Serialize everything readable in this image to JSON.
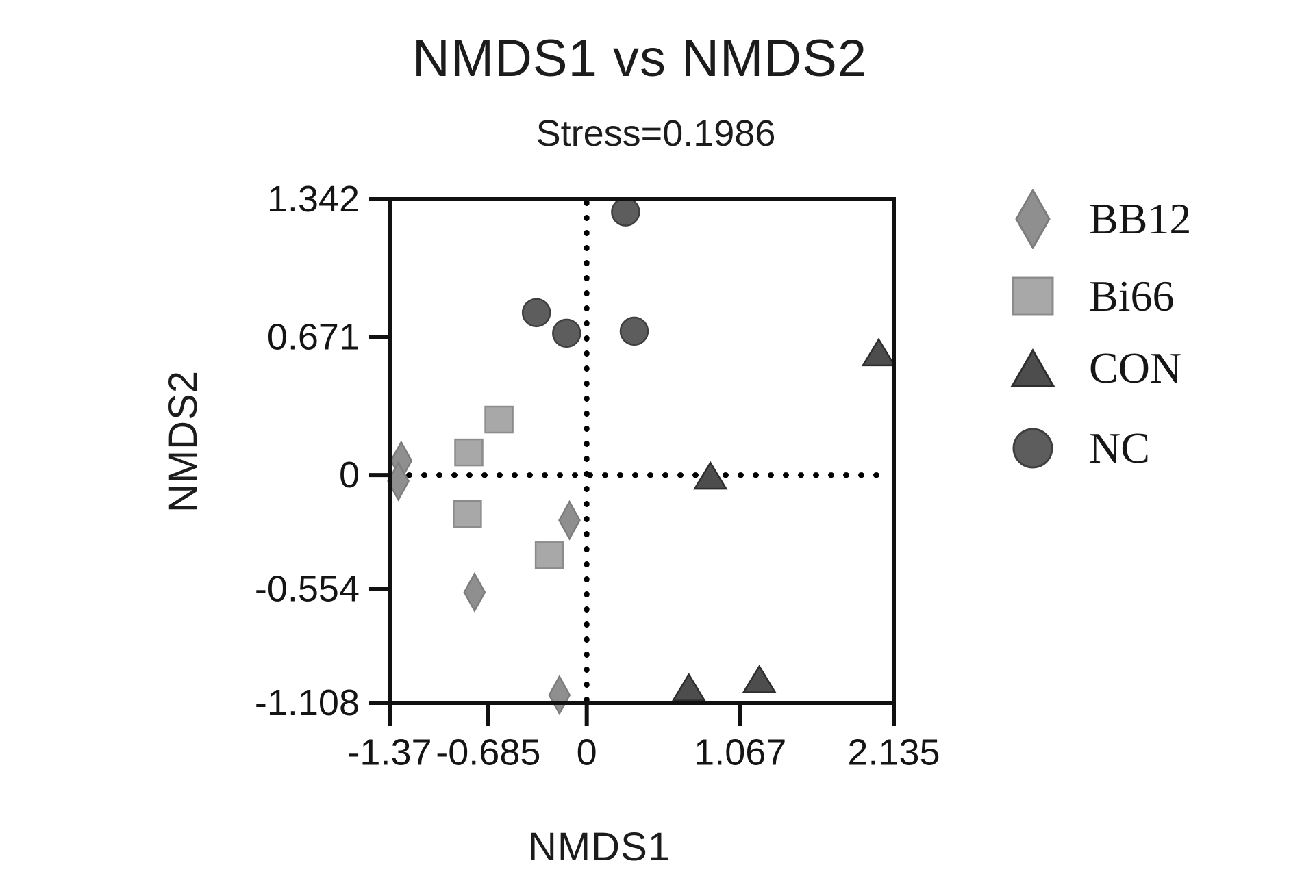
{
  "figure": {
    "background": "#ffffff",
    "axis_color": "#111111",
    "text_color": "#161616"
  },
  "chart_data": {
    "type": "scatter",
    "title": "NMDS1 vs NMDS2",
    "subtitle": "Stress=0.1986",
    "stress": "0.1986",
    "xlabel": "NMDS1",
    "ylabel": "NMDS2",
    "xlim": [
      -1.37,
      2.135
    ],
    "ylim": [
      -1.108,
      1.342
    ],
    "x_ticks": [
      -1.37,
      -0.685,
      0,
      1.067,
      2.135
    ],
    "x_tick_labels": [
      "-1.37",
      "-0.685",
      "0",
      "1.067",
      "2.135"
    ],
    "y_ticks": [
      1.342,
      0.671,
      0,
      -0.554,
      -1.108
    ],
    "y_tick_labels": [
      "1.342",
      "0.671",
      "0",
      "-0.554",
      "-1.108"
    ],
    "grid": false,
    "reference_lines": {
      "x": 0,
      "y": 0,
      "style": "dotted",
      "color": "#000000"
    },
    "legend_position": "right-outside",
    "series": [
      {
        "name": "BB12",
        "marker": "diamond",
        "color": "#8f8f8f",
        "stroke": "#7d7d7d",
        "points": [
          [
            -1.29,
            0.07
          ],
          [
            -1.31,
            -0.03
          ],
          [
            -0.12,
            -0.22
          ],
          [
            -0.78,
            -0.57
          ],
          [
            -0.19,
            -1.07
          ]
        ]
      },
      {
        "name": "Bi66",
        "marker": "square",
        "color": "#a8a8a8",
        "stroke": "#8c8c8c",
        "points": [
          [
            -0.61,
            0.27
          ],
          [
            -0.82,
            0.11
          ],
          [
            -0.83,
            -0.19
          ],
          [
            -0.26,
            -0.39
          ]
        ]
      },
      {
        "name": "CON",
        "marker": "triangle",
        "color": "#4d4d4d",
        "stroke": "#2e2e2e",
        "points": [
          [
            2.03,
            0.59
          ],
          [
            0.86,
            -0.01
          ],
          [
            0.71,
            -1.04
          ],
          [
            1.2,
            -1.0
          ]
        ]
      },
      {
        "name": "NC",
        "marker": "circle",
        "color": "#5d5d5d",
        "stroke": "#3f3f3f",
        "points": [
          [
            0.27,
            1.28
          ],
          [
            -0.35,
            0.79
          ],
          [
            -0.14,
            0.69
          ],
          [
            0.33,
            0.7
          ]
        ]
      }
    ]
  }
}
